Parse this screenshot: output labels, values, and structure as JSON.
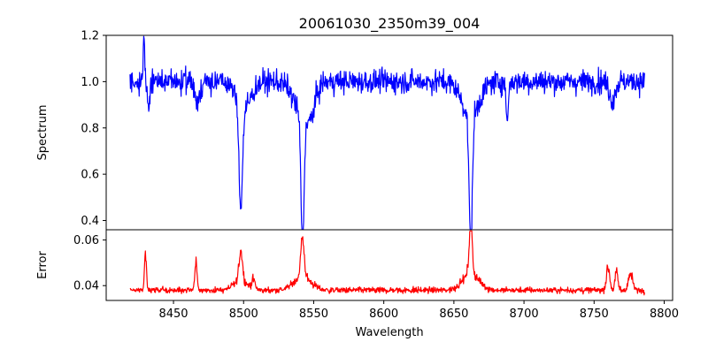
{
  "chart_data": {
    "type": "line",
    "title": "20061030_2350m39_004",
    "xlabel": "Wavelength",
    "x_ticks": [
      8450,
      8500,
      8550,
      8600,
      8650,
      8700,
      8750,
      8800
    ],
    "xlim": [
      8402,
      8806
    ],
    "panels": [
      {
        "name": "spectrum",
        "ylabel": "Spectrum",
        "ylim": [
          0.36,
          1.2
        ],
        "y_ticks": [
          0.4,
          0.6,
          0.8,
          1.0,
          1.2
        ],
        "y_tick_labels": [
          "0.4",
          "0.6",
          "0.8",
          "1.0",
          "1.2"
        ],
        "color": "#0000ff",
        "continuum": 1.0,
        "noise": 0.045,
        "features": [
          {
            "center": 8429,
            "depth": -0.18,
            "width": 0.6
          },
          {
            "center": 8432,
            "depth": 0.1,
            "width": 1.0
          },
          {
            "center": 8467,
            "depth": 0.1,
            "width": 1.5
          },
          {
            "center": 8498,
            "depth": 0.44,
            "width": 1.2
          },
          {
            "center": 8500,
            "depth": 0.12,
            "width": 5.0
          },
          {
            "center": 8542,
            "depth": 0.56,
            "width": 1.1
          },
          {
            "center": 8542,
            "depth": 0.14,
            "width": 6.0
          },
          {
            "center": 8548,
            "depth": 0.08,
            "width": 3.0
          },
          {
            "center": 8662,
            "depth": 0.58,
            "width": 1.1
          },
          {
            "center": 8662,
            "depth": 0.15,
            "width": 6.0
          },
          {
            "center": 8688,
            "depth": 0.17,
            "width": 0.8
          },
          {
            "center": 8763,
            "depth": 0.08,
            "width": 2.0
          }
        ]
      },
      {
        "name": "error",
        "ylabel": "Error",
        "ylim": [
          0.0335,
          0.0645
        ],
        "y_ticks": [
          0.04,
          0.06
        ],
        "y_tick_labels": [
          "0.04",
          "0.06"
        ],
        "color": "#ff0000",
        "continuum": 0.038,
        "noise": 0.0012,
        "features": [
          {
            "center": 8430,
            "depth": -0.016,
            "width": 0.7
          },
          {
            "center": 8466,
            "depth": -0.012,
            "width": 0.8
          },
          {
            "center": 8498,
            "depth": -0.014,
            "width": 1.2
          },
          {
            "center": 8498,
            "depth": -0.004,
            "width": 5.0
          },
          {
            "center": 8507,
            "depth": -0.004,
            "width": 1.2
          },
          {
            "center": 8542,
            "depth": -0.017,
            "width": 1.2
          },
          {
            "center": 8542,
            "depth": -0.006,
            "width": 6.0
          },
          {
            "center": 8662,
            "depth": -0.023,
            "width": 1.1
          },
          {
            "center": 8662,
            "depth": -0.007,
            "width": 6.0
          },
          {
            "center": 8760,
            "depth": -0.01,
            "width": 1.2
          },
          {
            "center": 8766,
            "depth": -0.008,
            "width": 1.0
          },
          {
            "center": 8776,
            "depth": -0.007,
            "width": 1.5
          }
        ]
      }
    ],
    "x_range_data": [
      8419,
      8786
    ],
    "n_points": 1240,
    "legend": "none",
    "grid": false
  }
}
